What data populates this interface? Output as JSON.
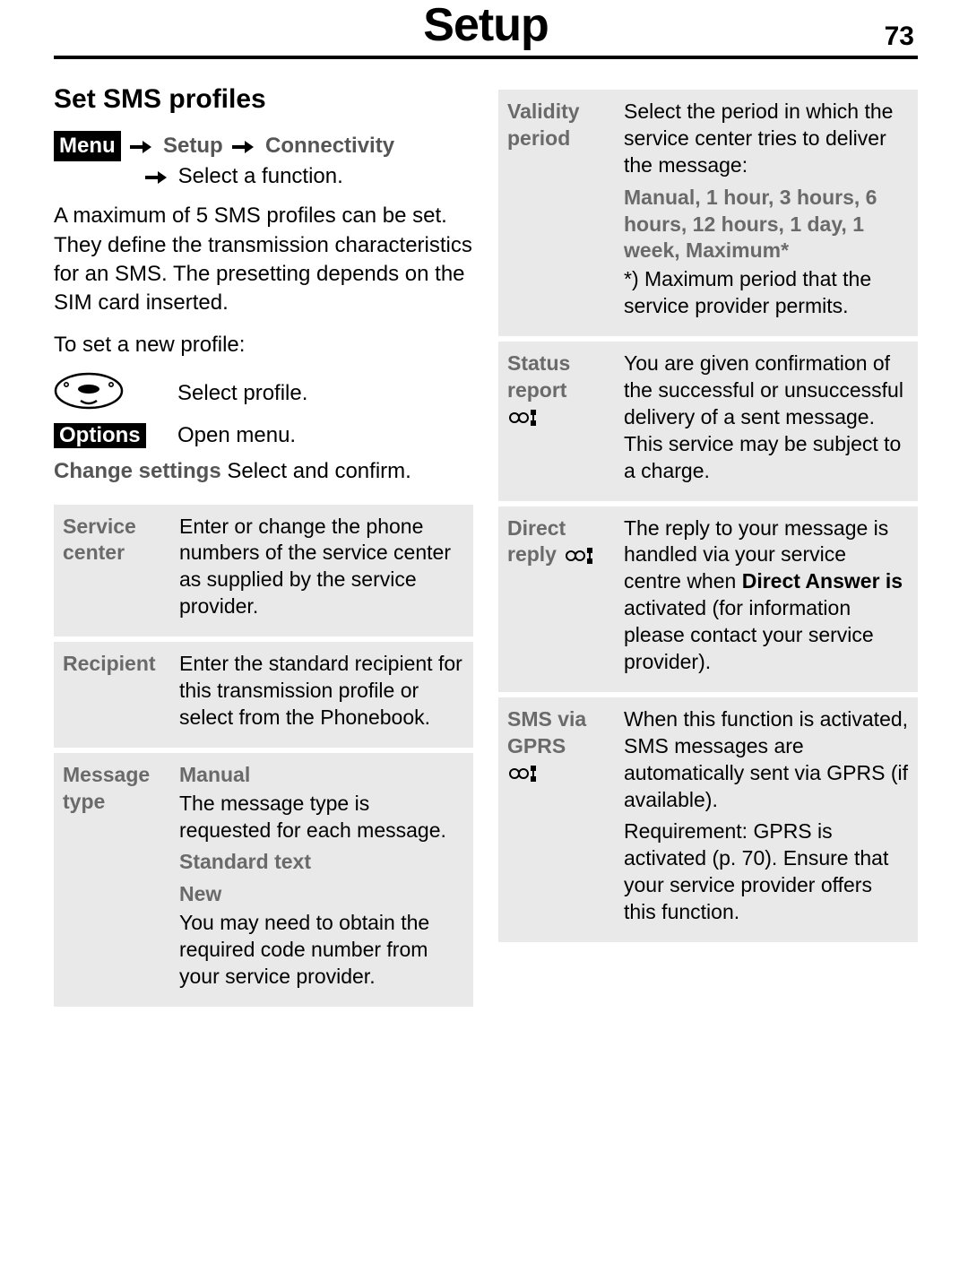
{
  "page": {
    "title": "Setup",
    "number": "73"
  },
  "section_title": "Set SMS profiles",
  "breadcrumb": {
    "menu_badge": "Menu",
    "setup": "Setup",
    "connectivity": "Connectivity",
    "select_fn": "Select a function."
  },
  "intro": "A maximum of 5 SMS profiles can be set. They define the transmission characteristics for an SMS. The presetting depends on the SIM card inserted.",
  "to_set": "To set a new profile:",
  "step1_text": "Select profile.",
  "options_badge": "Options",
  "step2_text": "Open menu.",
  "change_settings_bold": "Change settings",
  "change_settings_rest": " Select and confirm.",
  "left_table": [
    {
      "label": "Service\ncenter",
      "body": [
        {
          "t": "text",
          "v": "Enter or change the phone numbers of the service center as supplied by the service provider."
        }
      ]
    },
    {
      "label": "Recipient",
      "body": [
        {
          "t": "text",
          "v": "Enter the standard recipient for this transmission profile or select from the Phonebook."
        }
      ]
    },
    {
      "label": "Message\ntype",
      "body": [
        {
          "t": "subhead_first",
          "v": "Manual"
        },
        {
          "t": "text",
          "v": "The message type is requested for each message."
        },
        {
          "t": "subhead",
          "v": "Standard text"
        },
        {
          "t": "subhead",
          "v": "New"
        },
        {
          "t": "text",
          "v": "You may need to obtain the required code number from your service provider."
        }
      ]
    }
  ],
  "right_table": [
    {
      "label": "Validity\nperiod",
      "icon": false,
      "body": [
        {
          "t": "text",
          "v": "Select the period in which the service center tries to deliver the message:"
        },
        {
          "t": "subhead",
          "v": "Manual, 1 hour, 3 hours, 6 hours, 12 hours, 1 day, 1 week, Maximum*"
        },
        {
          "t": "text",
          "v": "*) Maximum period that the service provider permits."
        }
      ]
    },
    {
      "label": "Status\nreport",
      "icon": true,
      "body": [
        {
          "t": "text",
          "v": "You are given confirmation of the successful or unsuccessful delivery of a sent message. This service may be subject to a charge."
        }
      ]
    },
    {
      "label_inline_icon": true,
      "label": "Direct\nreply",
      "icon": false,
      "body": [
        {
          "t": "rich",
          "pre": "The reply to your message is handled via your service centre when ",
          "bold": "Direct Answer is",
          "post": " activated (for information please contact your service provider)."
        }
      ]
    },
    {
      "label": "SMS via\nGPRS",
      "icon": true,
      "body": [
        {
          "t": "text",
          "v": "When this function is activated, SMS messages are automatically sent via GPRS (if available)."
        },
        {
          "t": "text",
          "v": "Requirement: GPRS is activated (p. 70). Ensure that your service provider offers this function."
        }
      ]
    }
  ]
}
